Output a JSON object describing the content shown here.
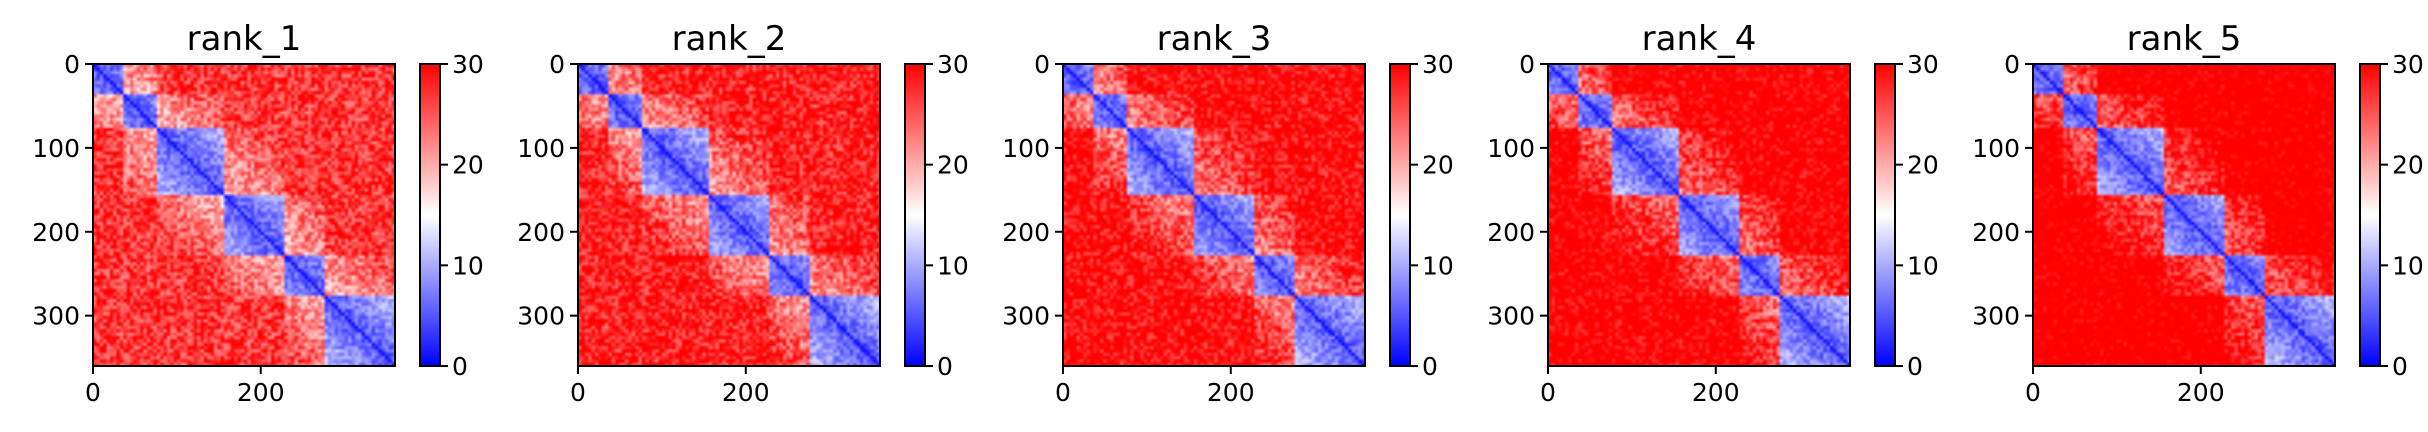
{
  "chart_data": [
    {
      "type": "heatmap",
      "title": "rank_1",
      "xticks": [
        0,
        200
      ],
      "yticks": [
        0,
        100,
        200,
        300
      ],
      "colorbar": {
        "min": 0,
        "max": 30,
        "ticks": [
          0,
          10,
          20,
          30
        ],
        "colors": [
          "#0000ff",
          "#ffffff",
          "#ff0000"
        ]
      },
      "size": 360,
      "domains": [
        [
          0,
          35
        ],
        [
          35,
          75
        ],
        [
          75,
          155
        ],
        [
          155,
          230
        ],
        [
          230,
          278
        ],
        [
          278,
          360
        ]
      ]
    },
    {
      "type": "heatmap",
      "title": "rank_2",
      "xticks": [
        0,
        200
      ],
      "yticks": [
        0,
        100,
        200,
        300
      ],
      "colorbar": {
        "min": 0,
        "max": 30,
        "ticks": [
          0,
          10,
          20,
          30
        ],
        "colors": [
          "#0000ff",
          "#ffffff",
          "#ff0000"
        ]
      },
      "size": 360,
      "domains": [
        [
          0,
          35
        ],
        [
          35,
          75
        ],
        [
          75,
          155
        ],
        [
          155,
          230
        ],
        [
          230,
          278
        ],
        [
          278,
          360
        ]
      ]
    },
    {
      "type": "heatmap",
      "title": "rank_3",
      "xticks": [
        0,
        200
      ],
      "yticks": [
        0,
        100,
        200,
        300
      ],
      "colorbar": {
        "min": 0,
        "max": 30,
        "ticks": [
          0,
          10,
          20,
          30
        ],
        "colors": [
          "#0000ff",
          "#ffffff",
          "#ff0000"
        ]
      },
      "size": 360,
      "domains": [
        [
          0,
          35
        ],
        [
          35,
          75
        ],
        [
          75,
          155
        ],
        [
          155,
          230
        ],
        [
          230,
          278
        ],
        [
          278,
          360
        ]
      ]
    },
    {
      "type": "heatmap",
      "title": "rank_4",
      "xticks": [
        0,
        200
      ],
      "yticks": [
        0,
        100,
        200,
        300
      ],
      "colorbar": {
        "min": 0,
        "max": 30,
        "ticks": [
          0,
          10,
          20,
          30
        ],
        "colors": [
          "#0000ff",
          "#ffffff",
          "#ff0000"
        ]
      },
      "size": 360,
      "domains": [
        [
          0,
          35
        ],
        [
          35,
          75
        ],
        [
          75,
          155
        ],
        [
          155,
          230
        ],
        [
          230,
          278
        ],
        [
          278,
          360
        ]
      ]
    },
    {
      "type": "heatmap",
      "title": "rank_5",
      "xticks": [
        0,
        200
      ],
      "yticks": [
        0,
        100,
        200,
        300
      ],
      "colorbar": {
        "min": 0,
        "max": 30,
        "ticks": [
          0,
          10,
          20,
          30
        ],
        "colors": [
          "#0000ff",
          "#ffffff",
          "#ff0000"
        ]
      },
      "size": 360,
      "domains": [
        [
          0,
          35
        ],
        [
          35,
          75
        ],
        [
          75,
          155
        ],
        [
          155,
          230
        ],
        [
          230,
          278
        ],
        [
          278,
          360
        ]
      ]
    }
  ]
}
